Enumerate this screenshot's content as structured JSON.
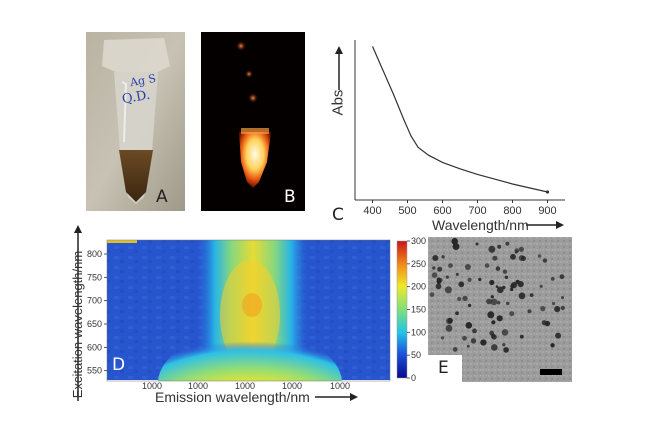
{
  "panels": {
    "a": {
      "letter": "A",
      "tube_label": [
        "Ag S",
        "Q.D."
      ]
    },
    "b": {
      "letter": "B"
    },
    "c": {
      "letter": "C"
    },
    "d": {
      "letter": "D"
    },
    "e": {
      "letter": "E"
    }
  },
  "chart_data": [
    {
      "type": "line",
      "panel": "C",
      "xlabel": "Wavelength/nm",
      "ylabel": "Abs",
      "xlim": [
        350,
        950
      ],
      "ylim": [
        0,
        1
      ],
      "y_ticks_shown": false,
      "x_ticks": [
        400,
        500,
        600,
        700,
        800,
        900
      ],
      "x": [
        400,
        430,
        460,
        490,
        510,
        530,
        560,
        600,
        650,
        700,
        750,
        800,
        850,
        900
      ],
      "y": [
        0.96,
        0.81,
        0.66,
        0.5,
        0.4,
        0.33,
        0.28,
        0.235,
        0.195,
        0.16,
        0.13,
        0.1,
        0.075,
        0.05
      ],
      "grid": false
    },
    {
      "type": "heatmap",
      "panel": "D",
      "xlabel": "Emission wavelength/nm",
      "ylabel": "Excitation wavelength/nm",
      "x_ticks": [
        "1000",
        "1000",
        "1000",
        "1000",
        "1000"
      ],
      "y_ticks": [
        550,
        600,
        650,
        700,
        750,
        800
      ],
      "colorbar_ticks": [
        0,
        50,
        100,
        150,
        200,
        250,
        300
      ],
      "colorbar_range": [
        0,
        300
      ],
      "colormap": [
        "#0a0a8c",
        "#1a4fd8",
        "#22c3e8",
        "#7fe07a",
        "#f0e82a",
        "#f08a1a",
        "#c8141a"
      ]
    }
  ]
}
